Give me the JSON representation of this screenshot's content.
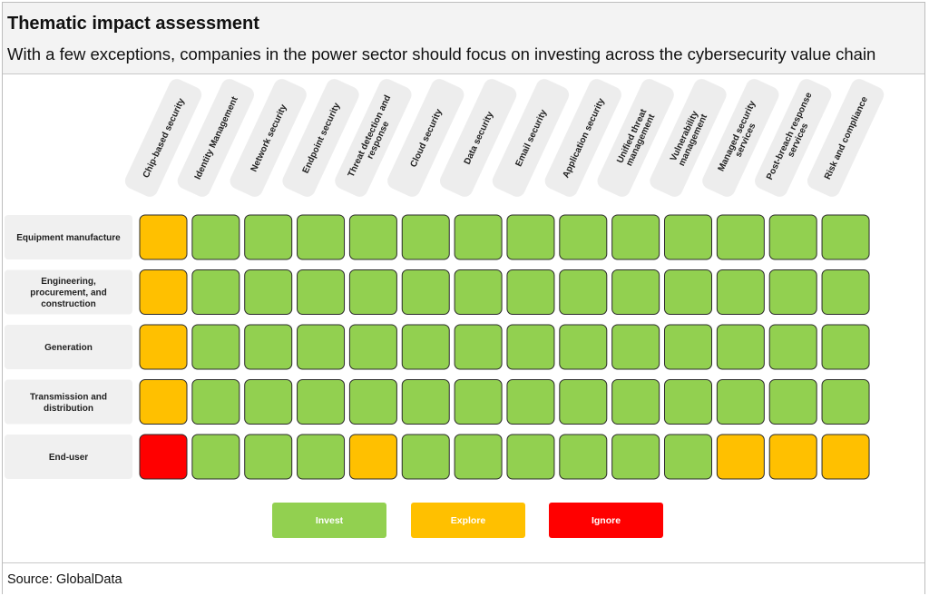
{
  "header": {
    "title": "Thematic impact assessment",
    "subtitle": "With a few exceptions, companies in the power sector should focus on investing across the cybersecurity value chain"
  },
  "footer": {
    "source": "Source: GlobalData"
  },
  "colors": {
    "invest": "#92d050",
    "explore": "#ffc000",
    "ignore": "#ff0000"
  },
  "legend": [
    {
      "key": "invest",
      "label": "Invest"
    },
    {
      "key": "explore",
      "label": "Explore"
    },
    {
      "key": "ignore",
      "label": "Ignore"
    }
  ],
  "chart_data": {
    "type": "heatmap",
    "columns": [
      [
        "Chip-based security"
      ],
      [
        "Identity Management"
      ],
      [
        "Network security"
      ],
      [
        "Endpoint security"
      ],
      [
        "Threat detection and",
        "response"
      ],
      [
        "Cloud security"
      ],
      [
        "Data security"
      ],
      [
        "Email security"
      ],
      [
        "Application security"
      ],
      [
        "Unified threat",
        "management"
      ],
      [
        "Vulnerability",
        "management"
      ],
      [
        "Managed security",
        "services"
      ],
      [
        "Post-breach response",
        "services"
      ],
      [
        "Risk and compliance"
      ]
    ],
    "rows": [
      [
        "Equipment manufacture"
      ],
      [
        "Engineering,",
        "procurement, and",
        "construction"
      ],
      [
        "Generation"
      ],
      [
        "Transmission and",
        "distribution"
      ],
      [
        "End-user"
      ]
    ],
    "values": [
      [
        "explore",
        "invest",
        "invest",
        "invest",
        "invest",
        "invest",
        "invest",
        "invest",
        "invest",
        "invest",
        "invest",
        "invest",
        "invest",
        "invest"
      ],
      [
        "explore",
        "invest",
        "invest",
        "invest",
        "invest",
        "invest",
        "invest",
        "invest",
        "invest",
        "invest",
        "invest",
        "invest",
        "invest",
        "invest"
      ],
      [
        "explore",
        "invest",
        "invest",
        "invest",
        "invest",
        "invest",
        "invest",
        "invest",
        "invest",
        "invest",
        "invest",
        "invest",
        "invest",
        "invest"
      ],
      [
        "explore",
        "invest",
        "invest",
        "invest",
        "invest",
        "invest",
        "invest",
        "invest",
        "invest",
        "invest",
        "invest",
        "invest",
        "invest",
        "invest"
      ],
      [
        "ignore",
        "invest",
        "invest",
        "invest",
        "explore",
        "invest",
        "invest",
        "invest",
        "invest",
        "invest",
        "invest",
        "explore",
        "explore",
        "explore"
      ]
    ]
  }
}
